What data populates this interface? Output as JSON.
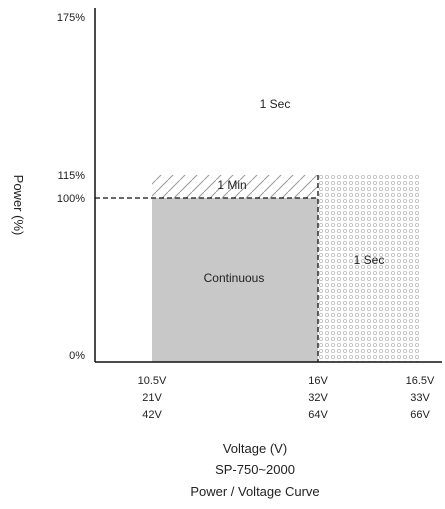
{
  "chart_data": {
    "type": "area",
    "title": "Power / Voltage Curve",
    "subtitle": "SP-750~2000",
    "xlabel": "Voltage (V)",
    "ylabel": "Power (%)",
    "y_ticks": [
      "175%",
      "115%",
      "100%",
      "0%"
    ],
    "y_tick_values": [
      175,
      115,
      100,
      0
    ],
    "x_tick_groups": [
      {
        "labels": [
          "10.5V",
          "21V",
          "42V"
        ]
      },
      {
        "labels": [
          "16V",
          "32V",
          "64V"
        ]
      },
      {
        "labels": [
          "16.5V",
          "33V",
          "66V"
        ]
      }
    ],
    "regions": [
      {
        "name": "continuous",
        "label": "Continuous",
        "x": [
          10.5,
          16
        ],
        "y": [
          0,
          100
        ],
        "fill": "#c8c8c8"
      },
      {
        "name": "one-min",
        "label": "1 Min",
        "x": [
          10.5,
          16
        ],
        "y": [
          100,
          115
        ],
        "fill": "hatch"
      },
      {
        "name": "one-sec-overvoltage",
        "label": "1 Sec",
        "x": [
          16,
          18.5
        ],
        "y": [
          0,
          115
        ],
        "fill": "dots"
      },
      {
        "name": "one-sec-peak",
        "label": "1 Sec",
        "x": [
          10.5,
          16
        ],
        "y": [
          115,
          175
        ],
        "fill": "none"
      }
    ],
    "reference_line": {
      "y": 100,
      "style": "dashed"
    },
    "grid": false,
    "colors": {
      "continuous": "#c8c8c8",
      "axis": "#111111",
      "dots": "#bdbdbd"
    }
  }
}
